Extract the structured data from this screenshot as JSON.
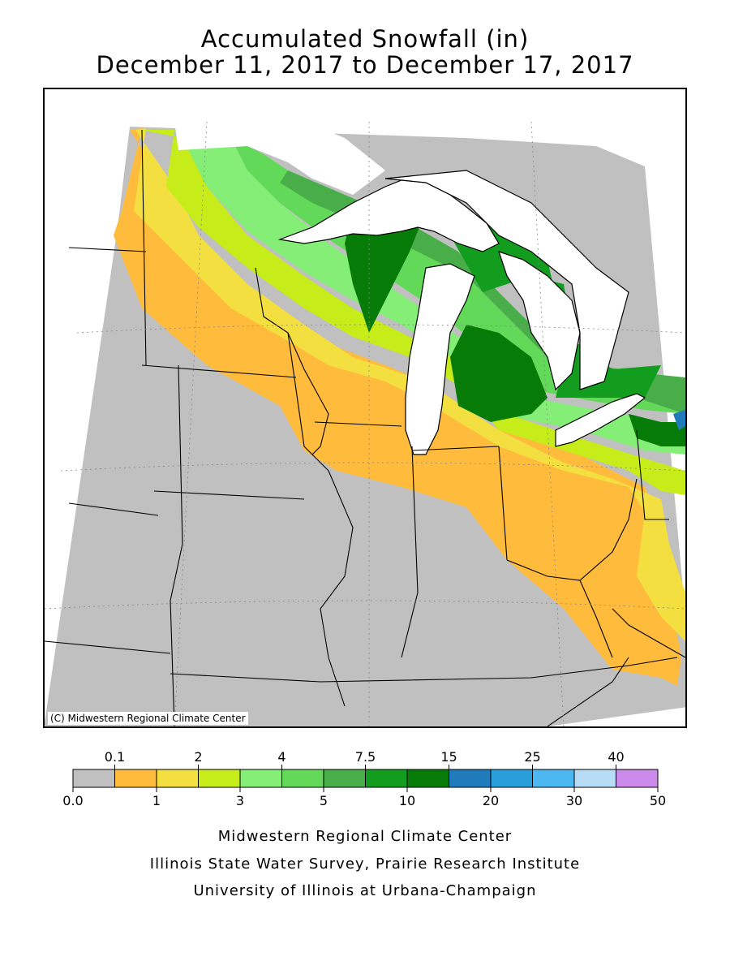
{
  "header": {
    "title_line1": "Accumulated Snowfall (in)",
    "title_line2": "December 11, 2017 to December 17, 2017"
  },
  "map": {
    "copyright": "(C) Midwestern Regional Climate Center",
    "colors": {
      "background": "#c0c0c0",
      "lake": "#ffffff",
      "border": "#000000"
    }
  },
  "legend": {
    "bins": [
      {
        "color": "#c0c0c0"
      },
      {
        "color": "#ffbb3c"
      },
      {
        "color": "#f4df40"
      },
      {
        "color": "#c6ec19"
      },
      {
        "color": "#84ee76"
      },
      {
        "color": "#63d95a"
      },
      {
        "color": "#49ad4a"
      },
      {
        "color": "#139d1e"
      },
      {
        "color": "#067b08"
      },
      {
        "color": "#1f7bbb"
      },
      {
        "color": "#2a9edb"
      },
      {
        "color": "#4cb7f1"
      },
      {
        "color": "#b7dcf5"
      },
      {
        "color": "#cb8ae9"
      }
    ],
    "top_labels": [
      "0.1",
      "2",
      "4",
      "7.5",
      "15",
      "25",
      "40"
    ],
    "bottom_labels": [
      "0.0",
      "1",
      "3",
      "5",
      "10",
      "20",
      "30",
      "50"
    ]
  },
  "footer": {
    "line1": "Midwestern Regional Climate Center",
    "line2": "Illinois State Water Survey, Prairie Research Institute",
    "line3": "University of Illinois at Urbana-Champaign"
  }
}
